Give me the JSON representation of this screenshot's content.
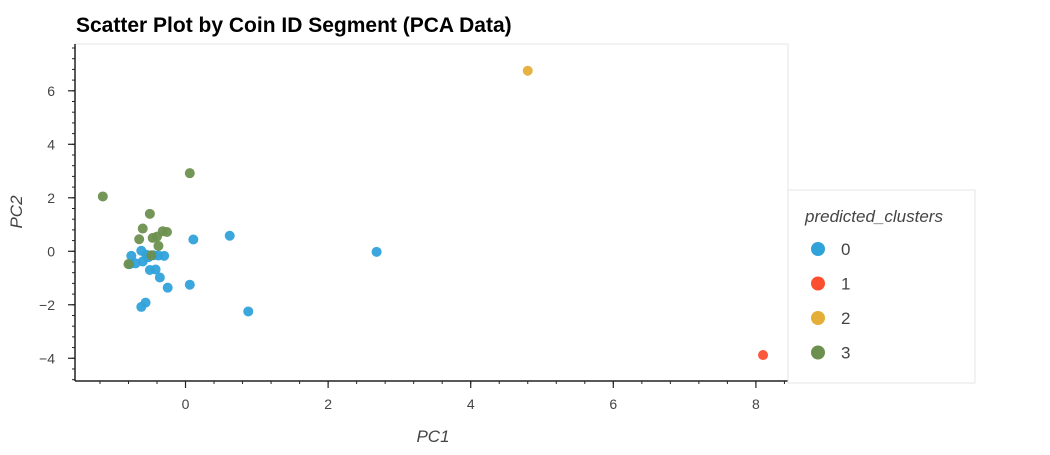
{
  "chart_data": {
    "type": "scatter",
    "title": "Scatter Plot by Coin ID Segment (PCA Data)",
    "xlabel": "PC1",
    "ylabel": "PC2",
    "xlim": [
      -1.55,
      8.45
    ],
    "ylim": [
      -4.85,
      7.75
    ],
    "x_ticks": [
      0,
      2,
      4,
      6,
      8
    ],
    "y_ticks": [
      -4,
      -2,
      0,
      2,
      4,
      6
    ],
    "x_tick_labels": [
      "0",
      "2",
      "4",
      "6",
      "8"
    ],
    "y_tick_labels": [
      "−4",
      "−2",
      "0",
      "2",
      "4",
      "6"
    ],
    "grid": false,
    "legend_position": "right",
    "legend_title": "predicted_clusters",
    "series": [
      {
        "name": "0",
        "color": "#30a2da",
        "points": [
          [
            -0.76,
            -0.17
          ],
          [
            -0.62,
            0.02
          ],
          [
            -0.55,
            -0.13
          ],
          [
            -0.45,
            -0.15
          ],
          [
            -0.38,
            -0.16
          ],
          [
            -0.3,
            -0.17
          ],
          [
            -0.52,
            -0.22
          ],
          [
            -0.6,
            -0.38
          ],
          [
            -0.7,
            -0.45
          ],
          [
            -0.78,
            -0.48
          ],
          [
            -0.5,
            -0.7
          ],
          [
            -0.42,
            -0.68
          ],
          [
            -0.36,
            -0.98
          ],
          [
            -0.25,
            -1.36
          ],
          [
            -0.56,
            -1.92
          ],
          [
            -0.62,
            -2.08
          ],
          [
            0.06,
            -1.25
          ],
          [
            0.11,
            0.44
          ],
          [
            0.62,
            0.58
          ],
          [
            0.88,
            -2.25
          ],
          [
            2.68,
            -0.02
          ]
        ]
      },
      {
        "name": "1",
        "color": "#fc4f30",
        "points": [
          [
            8.1,
            -3.88
          ]
        ]
      },
      {
        "name": "2",
        "color": "#e5ae38",
        "points": [
          [
            4.8,
            6.75
          ]
        ]
      },
      {
        "name": "3",
        "color": "#6d904f",
        "points": [
          [
            -1.16,
            2.05
          ],
          [
            0.06,
            2.92
          ],
          [
            -0.5,
            1.4
          ],
          [
            -0.6,
            0.85
          ],
          [
            -0.32,
            0.75
          ],
          [
            -0.26,
            0.72
          ],
          [
            -0.65,
            0.45
          ],
          [
            -0.46,
            0.5
          ],
          [
            -0.4,
            0.55
          ],
          [
            -0.38,
            0.2
          ],
          [
            -0.8,
            -0.48
          ],
          [
            -0.48,
            -0.15
          ]
        ]
      }
    ]
  }
}
